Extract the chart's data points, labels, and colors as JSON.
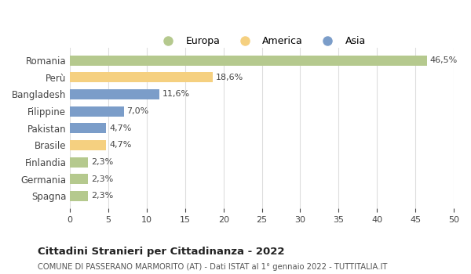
{
  "categories": [
    "Romania",
    "Perù",
    "Bangladesh",
    "Filippine",
    "Pakistan",
    "Brasile",
    "Finlandia",
    "Germania",
    "Spagna"
  ],
  "values": [
    46.5,
    18.6,
    11.6,
    7.0,
    4.7,
    4.7,
    2.3,
    2.3,
    2.3
  ],
  "labels": [
    "46,5%",
    "18,6%",
    "11,6%",
    "7,0%",
    "4,7%",
    "4,7%",
    "2,3%",
    "2,3%",
    "2,3%"
  ],
  "colors": [
    "#b5c98e",
    "#f5d080",
    "#7b9dc9",
    "#7b9dc9",
    "#7b9dc9",
    "#f5d080",
    "#b5c98e",
    "#b5c98e",
    "#b5c98e"
  ],
  "legend": [
    {
      "label": "Europa",
      "color": "#b5c98e"
    },
    {
      "label": "America",
      "color": "#f5d080"
    },
    {
      "label": "Asia",
      "color": "#7b9dc9"
    }
  ],
  "xlim": [
    0,
    50
  ],
  "xticks": [
    0,
    5,
    10,
    15,
    20,
    25,
    30,
    35,
    40,
    45,
    50
  ],
  "title": "Cittadini Stranieri per Cittadinanza - 2022",
  "subtitle": "COMUNE DI PASSERANO MARMORITO (AT) - Dati ISTAT al 1° gennaio 2022 - TUTTITALIA.IT",
  "background_color": "#ffffff",
  "grid_color": "#dddddd"
}
